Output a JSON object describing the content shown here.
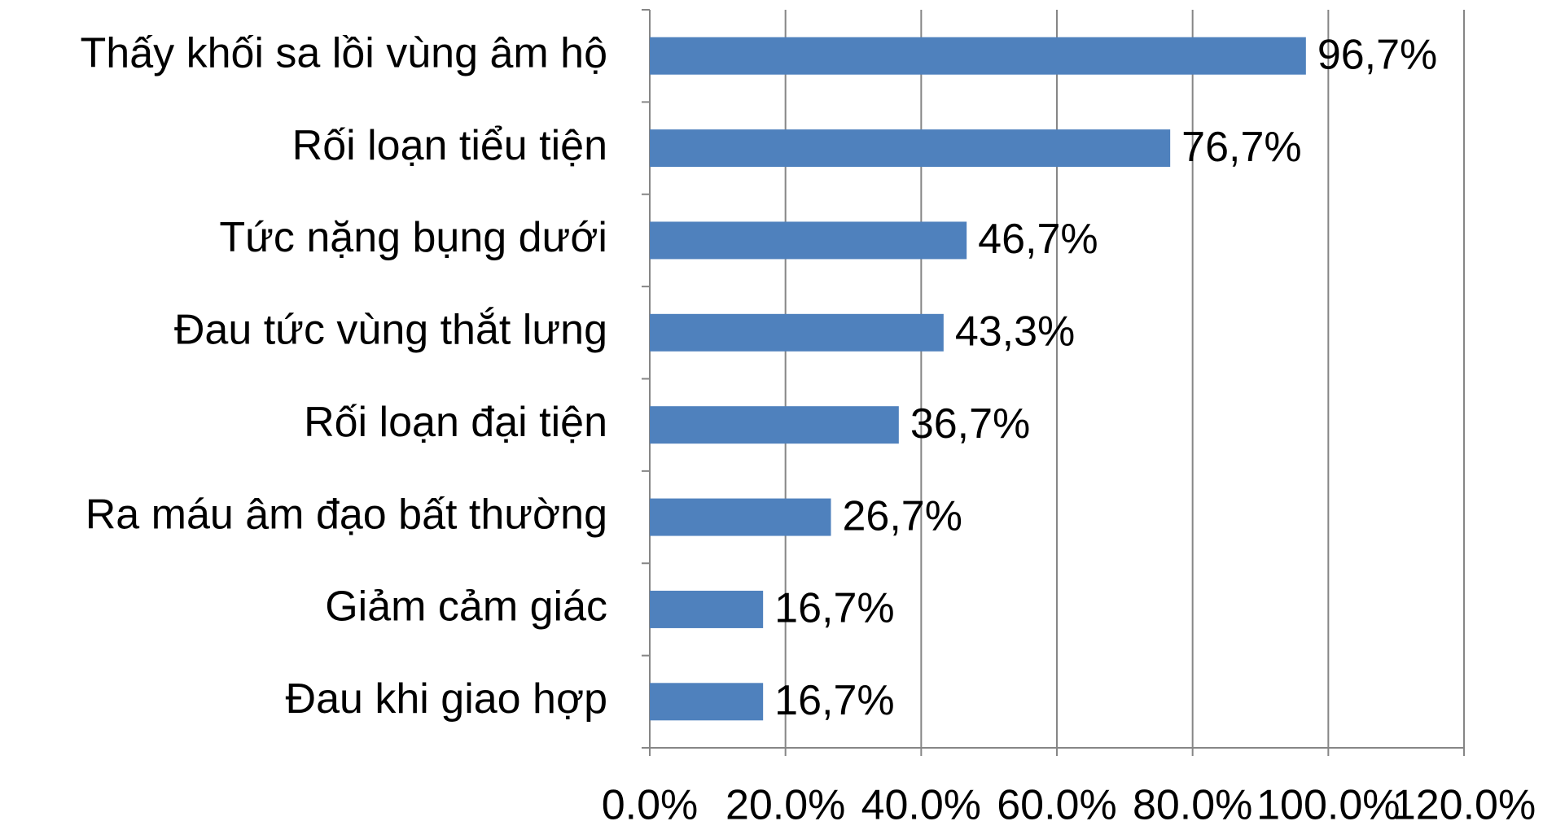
{
  "chart_data": {
    "type": "bar",
    "orientation": "horizontal",
    "categories": [
      "Thấy khối sa lồi vùng âm hộ",
      "Rối loạn tiểu tiện",
      "Tức nặng bụng dưới",
      "Đau tức vùng thắt lưng",
      "Rối loạn đại tiện",
      "Ra máu âm đạo bất thường",
      "Giảm cảm giác",
      "Đau khi giao hợp"
    ],
    "values": [
      96.7,
      76.7,
      46.7,
      43.3,
      36.7,
      26.7,
      16.7,
      16.7
    ],
    "value_labels": [
      "96,7%",
      "76,7%",
      "46,7%",
      "43,3%",
      "36,7%",
      "26,7%",
      "16,7%",
      "16,7%"
    ],
    "color": "#4f81bd",
    "xlim": [
      0,
      120
    ],
    "xticks": [
      {
        "value": 0,
        "label": "0.0%"
      },
      {
        "value": 20,
        "label": "20.0%"
      },
      {
        "value": 40,
        "label": "40.0%"
      },
      {
        "value": 60,
        "label": "60.0%"
      },
      {
        "value": 80,
        "label": "80.0%"
      },
      {
        "value": 100,
        "label": "100.0%"
      },
      {
        "value": 120,
        "label": "120.0%"
      }
    ],
    "grid": true
  }
}
